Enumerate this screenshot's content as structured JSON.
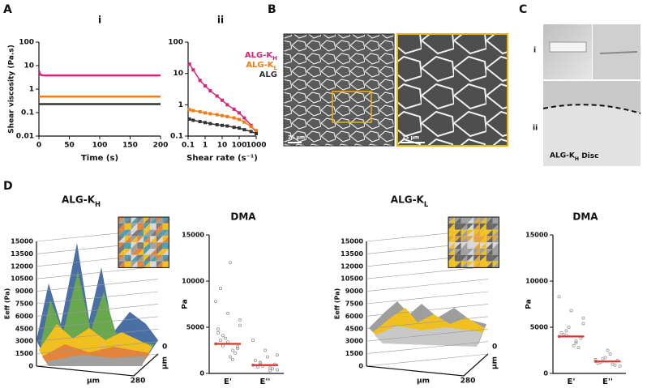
{
  "figure": {
    "panels": [
      "A",
      "B",
      "C",
      "D"
    ],
    "panel_c_labels": [
      "i",
      "ii"
    ],
    "scale_bars": [
      "25 μm",
      "15 μm"
    ],
    "disc_label": "ALG-KH Disc"
  },
  "chart_data": [
    {
      "type": "line",
      "title": "i",
      "xlabel": "Time (s)",
      "ylabel": "Shear viscosity (Pa.s)",
      "xlim": [
        0,
        200
      ],
      "xticks": [
        0,
        50,
        100,
        150,
        200
      ],
      "ylim": [
        0.01,
        100
      ],
      "yticks": [
        0.01,
        0.1,
        1,
        10,
        100
      ],
      "yscale": "log",
      "x": [
        0,
        2,
        5,
        10,
        25,
        50,
        100,
        150,
        200
      ],
      "series": [
        {
          "color": "#d6247a",
          "values": [
            6,
            4.2,
            3.9,
            3.8,
            3.8,
            3.8,
            3.8,
            3.8,
            3.8
          ]
        },
        {
          "color": "#f57c14",
          "values": [
            0.48,
            0.48,
            0.48,
            0.48,
            0.48,
            0.48,
            0.48,
            0.48,
            0.48
          ]
        },
        {
          "color": "#333333",
          "values": [
            0.23,
            0.23,
            0.23,
            0.23,
            0.23,
            0.23,
            0.23,
            0.23,
            0.23
          ]
        }
      ]
    },
    {
      "type": "line",
      "title": "ii",
      "xlabel": "Shear rate (s⁻¹)",
      "markers": true,
      "legend": "upper right",
      "xlim": [
        0.1,
        1000
      ],
      "xticks": [
        0.1,
        1,
        10,
        100,
        1000
      ],
      "xscale": "log",
      "ylim": [
        0.1,
        100
      ],
      "yticks": [
        0.1,
        1,
        10,
        100
      ],
      "yscale": "log",
      "x": [
        0.12,
        0.2,
        0.5,
        1,
        2,
        5,
        10,
        20,
        50,
        100,
        200,
        500,
        1000
      ],
      "series": [
        {
          "name": "ALG-KH",
          "color": "#d6247a",
          "values": [
            20,
            13,
            6,
            4,
            2.8,
            1.9,
            1.4,
            1.0,
            0.72,
            0.55,
            0.38,
            0.22,
            0.13
          ]
        },
        {
          "name": "ALG-KL",
          "color": "#f57c14",
          "values": [
            0.7,
            0.65,
            0.6,
            0.55,
            0.52,
            0.48,
            0.45,
            0.42,
            0.38,
            0.34,
            0.28,
            0.2,
            0.15
          ]
        },
        {
          "name": "ALG",
          "color": "#333333",
          "values": [
            0.35,
            0.32,
            0.29,
            0.27,
            0.25,
            0.23,
            0.22,
            0.21,
            0.19,
            0.18,
            0.16,
            0.14,
            0.12
          ]
        }
      ]
    },
    {
      "type": "surface3d",
      "title": "ALG-KH",
      "zlabel": "Eeff (Pa)",
      "zlim": [
        0,
        15000
      ],
      "zticks": [
        0,
        1500,
        3000,
        4500,
        6000,
        7500,
        9000,
        10500,
        12000,
        13500,
        15000
      ],
      "xlabel": "μm",
      "ylabel": "μm",
      "yticks": [
        0,
        280
      ]
    },
    {
      "type": "dotplot",
      "title": "DMA",
      "ylabel": "Pa",
      "ylim": [
        0,
        15000
      ],
      "yticks": [
        0,
        5000,
        10000,
        15000
      ],
      "categories": [
        "E'",
        "E''"
      ],
      "mean_color": "#e0302a",
      "point_color": "#999999",
      "means": [
        3200,
        900
      ],
      "points": [
        [
          3200,
          2500,
          4100,
          5200,
          1800,
          3600,
          2900,
          6500,
          4400,
          2200,
          3800,
          7800,
          1500,
          3000,
          5800,
          12000,
          9200,
          2700,
          3400,
          4800
        ],
        [
          900,
          600,
          1200,
          400,
          1800,
          700,
          1000,
          2500,
          1400,
          500,
          800,
          3600,
          300,
          1100,
          2000
        ]
      ]
    },
    {
      "type": "surface3d",
      "title": "ALG-KL",
      "zlabel": "Eeff (Pa)",
      "zlim": [
        0,
        15000
      ],
      "zticks": [
        0,
        1500,
        3000,
        4500,
        6000,
        7500,
        9000,
        10500,
        12000,
        13500,
        15000
      ],
      "xlabel": "μm",
      "ylabel": "μm",
      "yticks": [
        0,
        280
      ]
    },
    {
      "type": "dotplot",
      "title": "DMA",
      "ylabel": "Pa",
      "ylim": [
        0,
        15000
      ],
      "yticks": [
        0,
        5000,
        10000,
        15000
      ],
      "categories": [
        "E'",
        "E''"
      ],
      "mean_color": "#e0302a",
      "point_color": "#999999",
      "means": [
        4000,
        1300
      ],
      "points": [
        [
          4000,
          3500,
          4600,
          5400,
          3000,
          4200,
          3800,
          6800,
          4400,
          2800,
          5000,
          8300,
          3300,
          4100,
          6000
        ],
        [
          1300,
          1000,
          1600,
          800,
          2100,
          1200,
          1400,
          2500,
          1100,
          900,
          1700,
          1500
        ]
      ]
    }
  ]
}
